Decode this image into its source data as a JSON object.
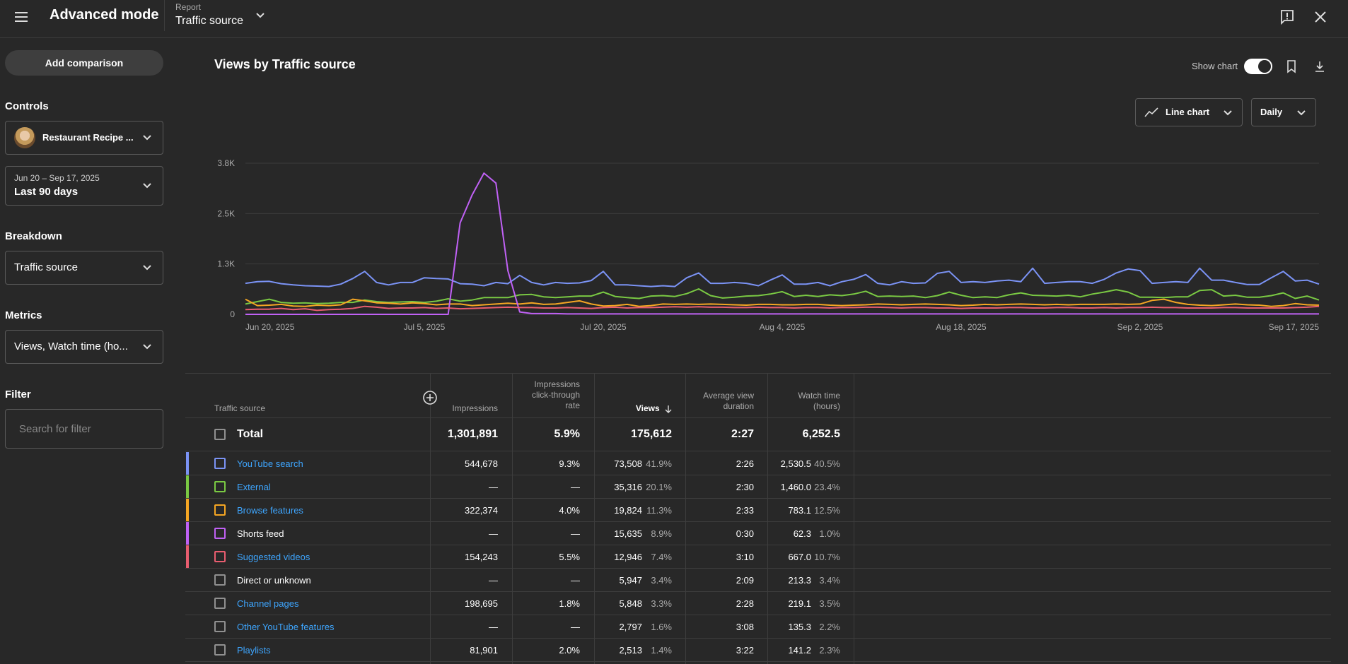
{
  "header": {
    "app_title": "Advanced mode",
    "report_label": "Report",
    "report_value": "Traffic source"
  },
  "sidebar": {
    "add_comparison": "Add comparison",
    "controls_heading": "Controls",
    "channel_name": "Restaurant Recipe ...",
    "date_range": "Jun 20 – Sep 17, 2025",
    "date_preset": "Last 90 days",
    "breakdown_heading": "Breakdown",
    "breakdown_value": "Traffic source",
    "metrics_heading": "Metrics",
    "metrics_value": "Views, Watch time (ho...",
    "filter_heading": "Filter",
    "filter_placeholder": "Search for filter"
  },
  "chart_panel": {
    "title": "Views by Traffic source",
    "show_chart_label": "Show chart",
    "show_chart_on": true,
    "chart_type": "Line chart",
    "interval": "Daily"
  },
  "chart_data": {
    "type": "line",
    "ylim": [
      0,
      3800
    ],
    "y_ticks": [
      "0",
      "1.3K",
      "2.5K",
      "3.8K"
    ],
    "x_ticks": [
      "Jun 20, 2025",
      "Jul 5, 2025",
      "Jul 20, 2025",
      "Aug 4, 2025",
      "Aug 18, 2025",
      "Sep 2, 2025",
      "Sep 17, 2025"
    ],
    "x_start": "2025-06-20",
    "x_end": "2025-09-17",
    "series": [
      {
        "color": "#7b93f5",
        "values": [
          780,
          820,
          830,
          770,
          740,
          720,
          710,
          700,
          760,
          900,
          1080,
          800,
          740,
          800,
          800,
          920,
          900,
          890,
          770,
          760,
          720,
          800,
          770,
          980,
          800,
          740,
          800,
          780,
          790,
          850,
          1080,
          740,
          740,
          720,
          700,
          720,
          700,
          920,
          1040,
          780,
          780,
          800,
          780,
          720,
          860,
          990,
          760,
          760,
          800,
          720,
          820,
          880,
          1000,
          780,
          740,
          820,
          780,
          790,
          1030,
          1080,
          800,
          820,
          800,
          840,
          860,
          820,
          1160,
          780,
          800,
          820,
          820,
          780,
          880,
          1040,
          1140,
          1100,
          780,
          800,
          820,
          800,
          1160,
          860,
          860,
          800,
          750,
          750,
          920,
          1080,
          840,
          860,
          760
        ]
      },
      {
        "color": "#7ac943",
        "values": [
          260,
          320,
          380,
          300,
          280,
          290,
          270,
          280,
          300,
          300,
          360,
          320,
          300,
          310,
          320,
          300,
          330,
          390,
          330,
          360,
          420,
          420,
          420,
          490,
          500,
          440,
          420,
          440,
          460,
          460,
          560,
          450,
          420,
          400,
          460,
          470,
          450,
          520,
          640,
          470,
          410,
          430,
          460,
          470,
          510,
          570,
          450,
          480,
          450,
          490,
          470,
          510,
          580,
          450,
          460,
          450,
          460,
          420,
          470,
          560,
          480,
          420,
          440,
          420,
          490,
          540,
          480,
          470,
          460,
          480,
          440,
          510,
          560,
          620,
          560,
          430,
          430,
          420,
          440,
          440,
          600,
          620,
          460,
          480,
          430,
          430,
          470,
          540,
          400,
          460,
          360
        ]
      },
      {
        "color": "#f5a623",
        "values": [
          380,
          220,
          230,
          250,
          210,
          200,
          230,
          220,
          240,
          380,
          340,
          290,
          280,
          260,
          290,
          270,
          240,
          260,
          260,
          220,
          240,
          260,
          280,
          260,
          290,
          250,
          260,
          300,
          340,
          260,
          210,
          220,
          250,
          200,
          220,
          260,
          250,
          260,
          250,
          260,
          250,
          240,
          230,
          250,
          250,
          240,
          240,
          250,
          250,
          230,
          220,
          230,
          240,
          260,
          250,
          240,
          250,
          260,
          250,
          240,
          220,
          230,
          250,
          240,
          250,
          260,
          250,
          240,
          250,
          240,
          250,
          250,
          250,
          260,
          250,
          260,
          350,
          380,
          300,
          250,
          230,
          220,
          240,
          260,
          240,
          230,
          200,
          220,
          270,
          240,
          230
        ]
      },
      {
        "color": "#c061f5",
        "values": [
          0,
          0,
          0,
          0,
          0,
          0,
          0,
          0,
          0,
          0,
          0,
          0,
          0,
          0,
          0,
          0,
          0,
          0,
          2300,
          3000,
          3550,
          3300,
          1100,
          60,
          20,
          20,
          20,
          10,
          10,
          10,
          10,
          10,
          10,
          10,
          10,
          10,
          10,
          10,
          10,
          10,
          10,
          10,
          10,
          10,
          10,
          10,
          10,
          10,
          10,
          10,
          10,
          10,
          10,
          10,
          10,
          10,
          10,
          10,
          10,
          10,
          10,
          10,
          10,
          10,
          10,
          10,
          10,
          10,
          10,
          10,
          10,
          10,
          10,
          10,
          10,
          10,
          10,
          10,
          10,
          10,
          10,
          10,
          10,
          10,
          10,
          10,
          10,
          10,
          10,
          10,
          10
        ]
      },
      {
        "color": "#e85d6f",
        "values": [
          120,
          130,
          130,
          150,
          120,
          140,
          100,
          120,
          130,
          150,
          200,
          180,
          150,
          160,
          160,
          170,
          150,
          160,
          140,
          150,
          160,
          170,
          180,
          170,
          170,
          160,
          160,
          170,
          160,
          150,
          170,
          180,
          160,
          170,
          170,
          180,
          190,
          180,
          190,
          180,
          180,
          170,
          170,
          180,
          170,
          170,
          160,
          170,
          170,
          160,
          170,
          170,
          180,
          180,
          170,
          160,
          170,
          170,
          160,
          160,
          150,
          160,
          160,
          160,
          170,
          170,
          160,
          160,
          170,
          170,
          160,
          160,
          170,
          160,
          170,
          170,
          180,
          170,
          170,
          160,
          160,
          160,
          170,
          170,
          160,
          160,
          160,
          160,
          170,
          180,
          200
        ]
      }
    ]
  },
  "table": {
    "headers": {
      "source": "Traffic source",
      "impressions": "Impressions",
      "ctr_line1": "Impressions",
      "ctr_line2": "click-through",
      "ctr_line3": "rate",
      "views": "Views",
      "avd_line1": "Average view",
      "avd_line2": "duration",
      "wt_line1": "Watch time",
      "wt_line2": "(hours)"
    },
    "total": {
      "label": "Total",
      "impressions": "1,301,891",
      "ctr": "5.9%",
      "views": "175,612",
      "avd": "2:27",
      "watch": "6,252.5"
    },
    "rows": [
      {
        "name": "YouTube search",
        "link": true,
        "color": "#7b93f5",
        "impressions": "544,678",
        "ctr": "9.3%",
        "views": "73,508",
        "views_pct": "41.9%",
        "avd": "2:26",
        "watch": "2,530.5",
        "watch_pct": "40.5%"
      },
      {
        "name": "External",
        "link": true,
        "color": "#7ac943",
        "impressions": "—",
        "ctr": "—",
        "views": "35,316",
        "views_pct": "20.1%",
        "avd": "2:30",
        "watch": "1,460.0",
        "watch_pct": "23.4%"
      },
      {
        "name": "Browse features",
        "link": true,
        "color": "#f5a623",
        "impressions": "322,374",
        "ctr": "4.0%",
        "views": "19,824",
        "views_pct": "11.3%",
        "avd": "2:33",
        "watch": "783.1",
        "watch_pct": "12.5%"
      },
      {
        "name": "Shorts feed",
        "link": false,
        "color": "#c061f5",
        "impressions": "—",
        "ctr": "—",
        "views": "15,635",
        "views_pct": "8.9%",
        "avd": "0:30",
        "watch": "62.3",
        "watch_pct": "1.0%"
      },
      {
        "name": "Suggested videos",
        "link": true,
        "color": "#e85d6f",
        "impressions": "154,243",
        "ctr": "5.5%",
        "views": "12,946",
        "views_pct": "7.4%",
        "avd": "3:10",
        "watch": "667.0",
        "watch_pct": "10.7%"
      },
      {
        "name": "Direct or unknown",
        "link": false,
        "color": "",
        "impressions": "—",
        "ctr": "—",
        "views": "5,947",
        "views_pct": "3.4%",
        "avd": "2:09",
        "watch": "213.3",
        "watch_pct": "3.4%"
      },
      {
        "name": "Channel pages",
        "link": true,
        "color": "",
        "impressions": "198,695",
        "ctr": "1.8%",
        "views": "5,848",
        "views_pct": "3.3%",
        "avd": "2:28",
        "watch": "219.1",
        "watch_pct": "3.5%"
      },
      {
        "name": "Other YouTube features",
        "link": true,
        "color": "",
        "impressions": "—",
        "ctr": "—",
        "views": "2,797",
        "views_pct": "1.6%",
        "avd": "3:08",
        "watch": "135.3",
        "watch_pct": "2.2%"
      },
      {
        "name": "Playlists",
        "link": true,
        "color": "",
        "impressions": "81,901",
        "ctr": "2.0%",
        "views": "2,513",
        "views_pct": "1.4%",
        "avd": "3:22",
        "watch": "141.2",
        "watch_pct": "2.3%"
      }
    ]
  }
}
